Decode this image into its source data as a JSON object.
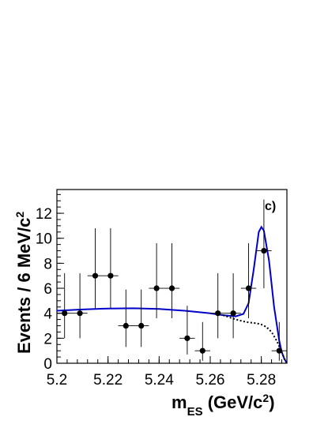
{
  "chart_data": {
    "type": "scatter",
    "panel_label": "c)",
    "xlabel": {
      "main": "m",
      "sub": "ES",
      "unit_open": " (GeV/c",
      "sup": "2",
      "unit_close": ")"
    },
    "ylabel": {
      "main": "Events / 6 MeV/c",
      "sup": "2"
    },
    "xlim": [
      5.2,
      5.29
    ],
    "ylim": [
      0,
      13.9
    ],
    "x_ticks": [
      "5.2",
      "5.22",
      "5.24",
      "5.26",
      "5.28"
    ],
    "y_ticks": [
      "0",
      "2",
      "4",
      "6",
      "8",
      "10",
      "12"
    ],
    "grid": false,
    "colors": {
      "fit": "#0000cc",
      "background": "#000000",
      "points": "#000000"
    },
    "series": [
      {
        "kind": "data_points",
        "x": [
          5.203,
          5.209,
          5.215,
          5.221,
          5.227,
          5.233,
          5.239,
          5.245,
          5.251,
          5.257,
          5.263,
          5.269,
          5.275,
          5.281,
          5.287
        ],
        "x_err": 0.003,
        "y": [
          4,
          4,
          7,
          7,
          3,
          3,
          6,
          6,
          2,
          1,
          4,
          4,
          6,
          9,
          1
        ],
        "y_err_low": [
          2.0,
          2.0,
          2.6,
          2.6,
          1.7,
          1.7,
          2.4,
          2.4,
          1.3,
          0.8,
          2.0,
          2.0,
          2.4,
          3.0,
          0.8
        ],
        "y_err_high": [
          3.2,
          3.2,
          3.8,
          3.8,
          2.9,
          2.9,
          3.6,
          3.6,
          2.6,
          2.3,
          3.2,
          3.2,
          3.6,
          4.1,
          2.3
        ]
      },
      {
        "kind": "total_fit",
        "style": "solid",
        "x": [
          5.2,
          5.21,
          5.22,
          5.23,
          5.24,
          5.25,
          5.26,
          5.265,
          5.27,
          5.273,
          5.275,
          5.277,
          5.279,
          5.28,
          5.281,
          5.283,
          5.285,
          5.287,
          5.288,
          5.289,
          5.29
        ],
        "y": [
          4.2,
          4.3,
          4.38,
          4.4,
          4.35,
          4.2,
          4.0,
          3.85,
          3.75,
          3.95,
          4.8,
          7.5,
          10.5,
          10.9,
          10.6,
          8.2,
          4.5,
          1.8,
          0.9,
          0.35,
          0
        ]
      },
      {
        "kind": "background",
        "style": "dotted",
        "x": [
          5.265,
          5.27,
          5.274,
          5.278,
          5.28,
          5.282,
          5.284,
          5.286,
          5.288,
          5.289,
          5.29
        ],
        "y": [
          3.85,
          3.5,
          3.3,
          3.2,
          3.1,
          2.9,
          2.5,
          1.8,
          0.9,
          0.35,
          0
        ]
      }
    ]
  }
}
